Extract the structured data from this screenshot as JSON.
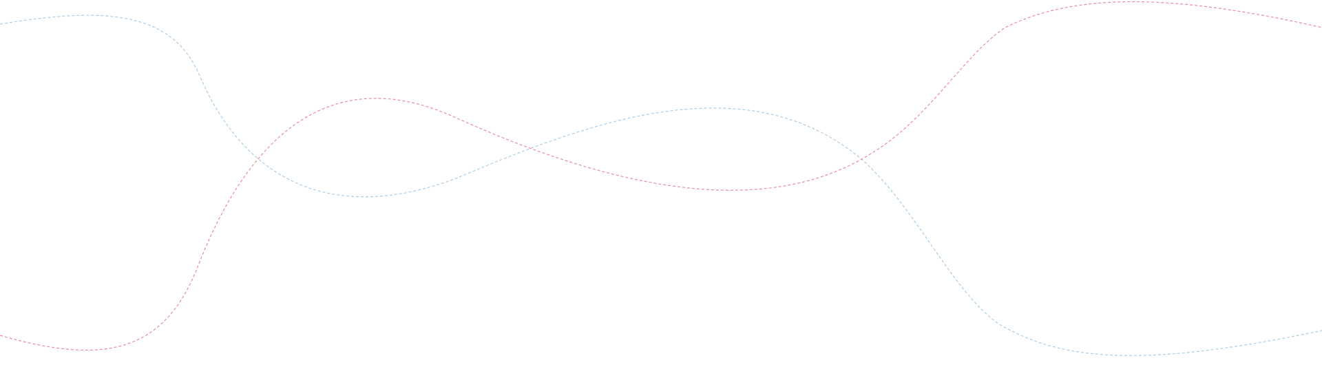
{
  "decoration": {
    "curves": [
      {
        "name": "blue-dashed-wave",
        "color": "#a9cde6"
      },
      {
        "name": "pink-dashed-wave",
        "color": "#e98aa2"
      }
    ],
    "background": "#ffffff"
  }
}
